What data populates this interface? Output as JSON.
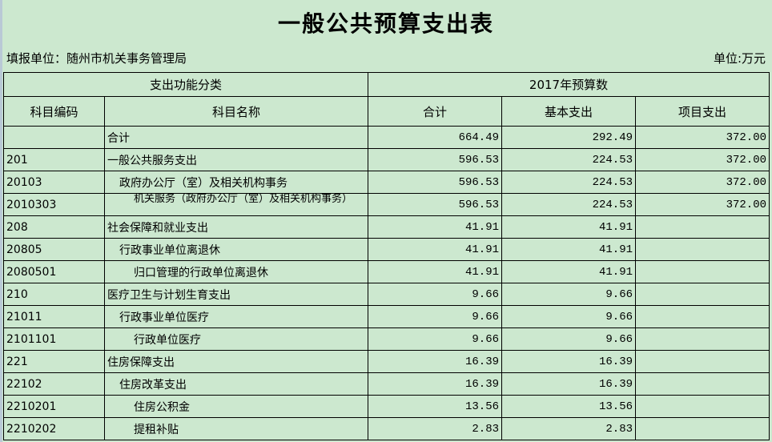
{
  "title": "一般公共预算支出表",
  "unit_left": "填报单位：随州市机关事务管理局",
  "unit_right": "单位:万元",
  "header": {
    "group1": "支出功能分类",
    "group2": "2017年预算数",
    "code": "科目编码",
    "name": "科目名称",
    "total": "合计",
    "basic": "基本支出",
    "project": "项目支出"
  },
  "rows": [
    {
      "code": "",
      "name": "合计",
      "level": 1,
      "total": "664.49",
      "basic": "292.49",
      "project": "372.00"
    },
    {
      "code": "201",
      "name": "一般公共服务支出",
      "level": 1,
      "total": "596.53",
      "basic": "224.53",
      "project": "372.00"
    },
    {
      "code": "20103",
      "name": "政府办公厅（室）及相关机构事务",
      "level": 2,
      "total": "596.53",
      "basic": "224.53",
      "project": "372.00"
    },
    {
      "code": "2010303",
      "name": "机关服务（政府办公厅（室）及相关机构事务）",
      "level": 3,
      "total": "596.53",
      "basic": "224.53",
      "project": "372.00"
    },
    {
      "code": "208",
      "name": "社会保障和就业支出",
      "level": 1,
      "total": "41.91",
      "basic": "41.91",
      "project": ""
    },
    {
      "code": "20805",
      "name": "行政事业单位离退休",
      "level": 2,
      "total": "41.91",
      "basic": "41.91",
      "project": ""
    },
    {
      "code": "2080501",
      "name": "归口管理的行政单位离退休",
      "level": 3,
      "total": "41.91",
      "basic": "41.91",
      "project": ""
    },
    {
      "code": "210",
      "name": "医疗卫生与计划生育支出",
      "level": 1,
      "total": "9.66",
      "basic": "9.66",
      "project": ""
    },
    {
      "code": "21011",
      "name": "行政事业单位医疗",
      "level": 2,
      "total": "9.66",
      "basic": "9.66",
      "project": ""
    },
    {
      "code": "2101101",
      "name": "行政单位医疗",
      "level": 3,
      "total": "9.66",
      "basic": "9.66",
      "project": ""
    },
    {
      "code": "221",
      "name": "住房保障支出",
      "level": 1,
      "total": "16.39",
      "basic": "16.39",
      "project": ""
    },
    {
      "code": "22102",
      "name": "住房改革支出",
      "level": 2,
      "total": "16.39",
      "basic": "16.39",
      "project": ""
    },
    {
      "code": "2210201",
      "name": "住房公积金",
      "level": 3,
      "total": "13.56",
      "basic": "13.56",
      "project": ""
    },
    {
      "code": "2210202",
      "name": "提租补贴",
      "level": 3,
      "total": "2.83",
      "basic": "2.83",
      "project": ""
    }
  ]
}
